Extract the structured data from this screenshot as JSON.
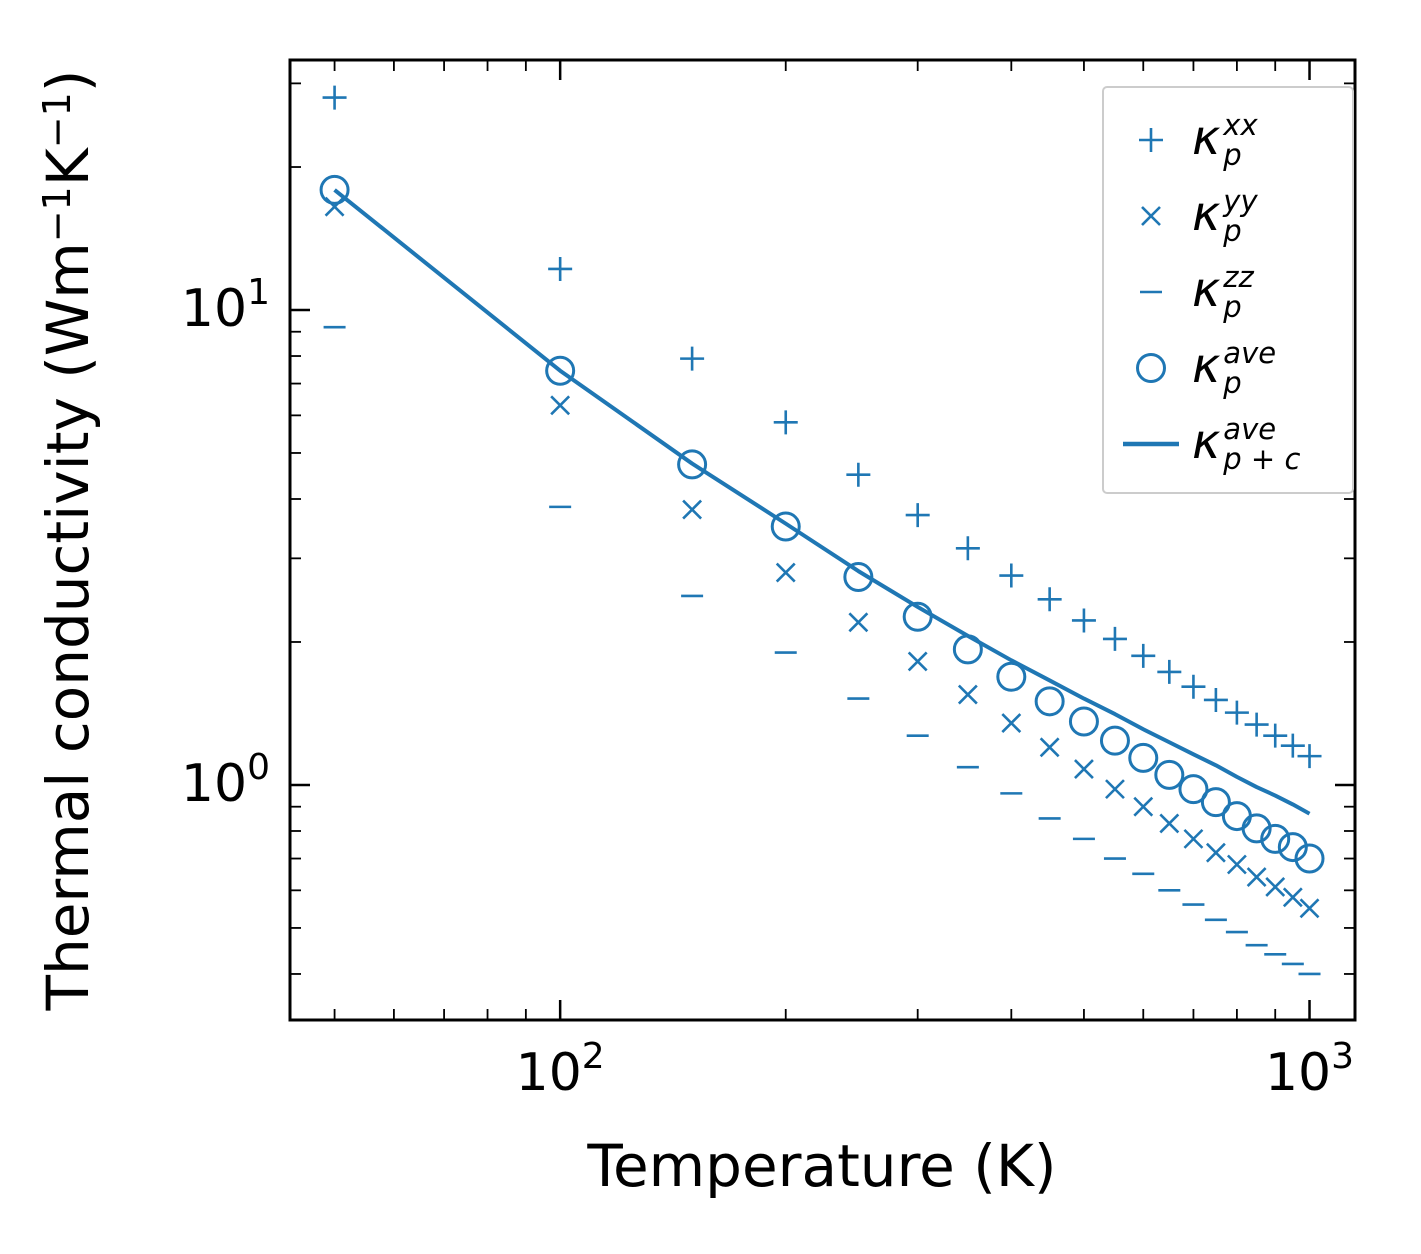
{
  "chart_data": {
    "type": "scatter",
    "title": "",
    "xlabel": "Temperature (K)",
    "ylabel_parts": [
      "Thermal conductivity (Wm",
      {
        "sup": "−1"
      },
      "K",
      {
        "sup": "−1"
      },
      ")"
    ],
    "x_scale": "log",
    "y_scale": "log",
    "grid": false,
    "legend_position": "upper right",
    "color": "#1f77b4",
    "xlim": [
      43.6,
      1150
    ],
    "ylim": [
      0.32,
      33.6
    ],
    "xticks": [
      {
        "v": 100,
        "base": "10",
        "exp": "2"
      },
      {
        "v": 1000,
        "base": "10",
        "exp": "3"
      }
    ],
    "yticks": [
      {
        "v": 1,
        "base": "10",
        "exp": "0"
      },
      {
        "v": 10,
        "base": "10",
        "exp": "1"
      }
    ],
    "minor_xticks": [
      50,
      60,
      70,
      80,
      90,
      200,
      300,
      400,
      500,
      600,
      700,
      800,
      900
    ],
    "minor_yticks": [
      0.4,
      0.5,
      0.6,
      0.7,
      0.8,
      0.9,
      2,
      3,
      4,
      5,
      6,
      7,
      8,
      9,
      20,
      30
    ],
    "x": [
      50,
      100,
      150,
      200,
      250,
      300,
      350,
      400,
      450,
      500,
      550,
      600,
      650,
      700,
      750,
      800,
      850,
      900,
      950,
      1000
    ],
    "series": [
      {
        "name": "kappa-p-xx",
        "marker": "plus",
        "values": [
          28.0,
          12.2,
          7.9,
          5.8,
          4.5,
          3.7,
          3.15,
          2.76,
          2.46,
          2.22,
          2.03,
          1.87,
          1.73,
          1.61,
          1.51,
          1.42,
          1.34,
          1.27,
          1.21,
          1.15
        ]
      },
      {
        "name": "kappa-p-yy",
        "marker": "x",
        "values": [
          16.5,
          6.3,
          3.8,
          2.8,
          2.2,
          1.82,
          1.55,
          1.35,
          1.2,
          1.08,
          0.98,
          0.9,
          0.83,
          0.77,
          0.72,
          0.68,
          0.64,
          0.61,
          0.58,
          0.55
        ]
      },
      {
        "name": "kappa-p-zz",
        "marker": "minus",
        "values": [
          9.2,
          3.85,
          2.5,
          1.9,
          1.52,
          1.27,
          1.09,
          0.96,
          0.85,
          0.77,
          0.7,
          0.65,
          0.6,
          0.56,
          0.52,
          0.49,
          0.46,
          0.44,
          0.42,
          0.4
        ]
      },
      {
        "name": "kappa-p-ave",
        "marker": "circle",
        "values": [
          17.9,
          7.45,
          4.73,
          3.5,
          2.74,
          2.26,
          1.93,
          1.69,
          1.5,
          1.36,
          1.24,
          1.14,
          1.05,
          0.98,
          0.92,
          0.86,
          0.81,
          0.77,
          0.74,
          0.7
        ]
      },
      {
        "name": "kappa-p-plus-c-ave",
        "marker": "line",
        "values": [
          17.9,
          7.45,
          4.75,
          3.55,
          2.82,
          2.37,
          2.06,
          1.83,
          1.66,
          1.52,
          1.41,
          1.31,
          1.23,
          1.16,
          1.1,
          1.04,
          0.99,
          0.95,
          0.91,
          0.87
        ]
      }
    ],
    "legend_symbol": "κ",
    "legend": [
      {
        "series": "kappa-p-xx",
        "marker": "plus",
        "sup": "xx",
        "sub": "p"
      },
      {
        "series": "kappa-p-yy",
        "marker": "x",
        "sup": "yy",
        "sub": "p"
      },
      {
        "series": "kappa-p-zz",
        "marker": "minus",
        "sup": "zz",
        "sub": "p"
      },
      {
        "series": "kappa-p-ave",
        "marker": "circle",
        "sup": "ave",
        "sub": "p"
      },
      {
        "series": "kappa-p-plus-c-ave",
        "marker": "line",
        "sup": "ave",
        "sub": "p + c"
      }
    ]
  }
}
